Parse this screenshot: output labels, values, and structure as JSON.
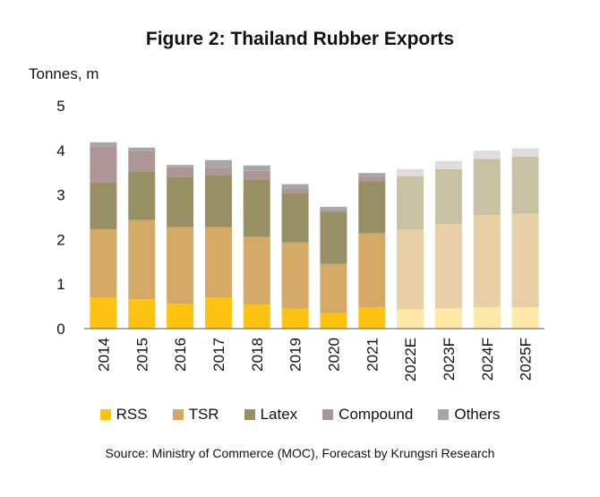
{
  "chart_data": {
    "type": "bar",
    "stacked": true,
    "title": "Figure 2: Thailand Rubber Exports",
    "ylabel": "Tonnes, m",
    "ylim": [
      0,
      5
    ],
    "yticks": [
      "0",
      "1",
      "2",
      "3",
      "4",
      "5"
    ],
    "grid": false,
    "legend_position": "bottom",
    "categories": [
      "2014",
      "2015",
      "2016",
      "2017",
      "2018",
      "2019",
      "2020",
      "2021",
      "2022E",
      "2023F",
      "2024F",
      "2025F"
    ],
    "forecast_from_index": 8,
    "series": [
      {
        "name": "RSS",
        "color": "#FFC20E",
        "forecast_color": "#FFE8A6",
        "values": [
          0.7,
          0.66,
          0.56,
          0.7,
          0.54,
          0.45,
          0.35,
          0.48,
          0.43,
          0.45,
          0.48,
          0.48
        ]
      },
      {
        "name": "TSR",
        "color": "#D4A865",
        "forecast_color": "#E8CFA5",
        "values": [
          1.53,
          1.78,
          1.72,
          1.58,
          1.52,
          1.48,
          1.1,
          1.66,
          1.79,
          1.9,
          2.07,
          2.1
        ]
      },
      {
        "name": "Latex",
        "color": "#989065",
        "forecast_color": "#C7C2A3",
        "values": [
          1.05,
          1.09,
          1.12,
          1.17,
          1.29,
          1.11,
          1.16,
          1.17,
          1.2,
          1.23,
          1.26,
          1.28
        ]
      },
      {
        "name": "Compound",
        "color": "#AF9595",
        "forecast_color": "#E8DAD8",
        "values": [
          0.81,
          0.45,
          0.22,
          0.16,
          0.19,
          0.1,
          0.04,
          0.1,
          0.06,
          0.08,
          0.08,
          0.08
        ]
      },
      {
        "name": "Others",
        "color": "#A6A6A6",
        "forecast_color": "#DCDCDC",
        "values": [
          0.09,
          0.08,
          0.05,
          0.17,
          0.12,
          0.1,
          0.08,
          0.08,
          0.1,
          0.1,
          0.1,
          0.1
        ]
      }
    ]
  },
  "source_text": "Source:  Ministry of Commerce (MOC),  Forecast by Krungsri Research"
}
